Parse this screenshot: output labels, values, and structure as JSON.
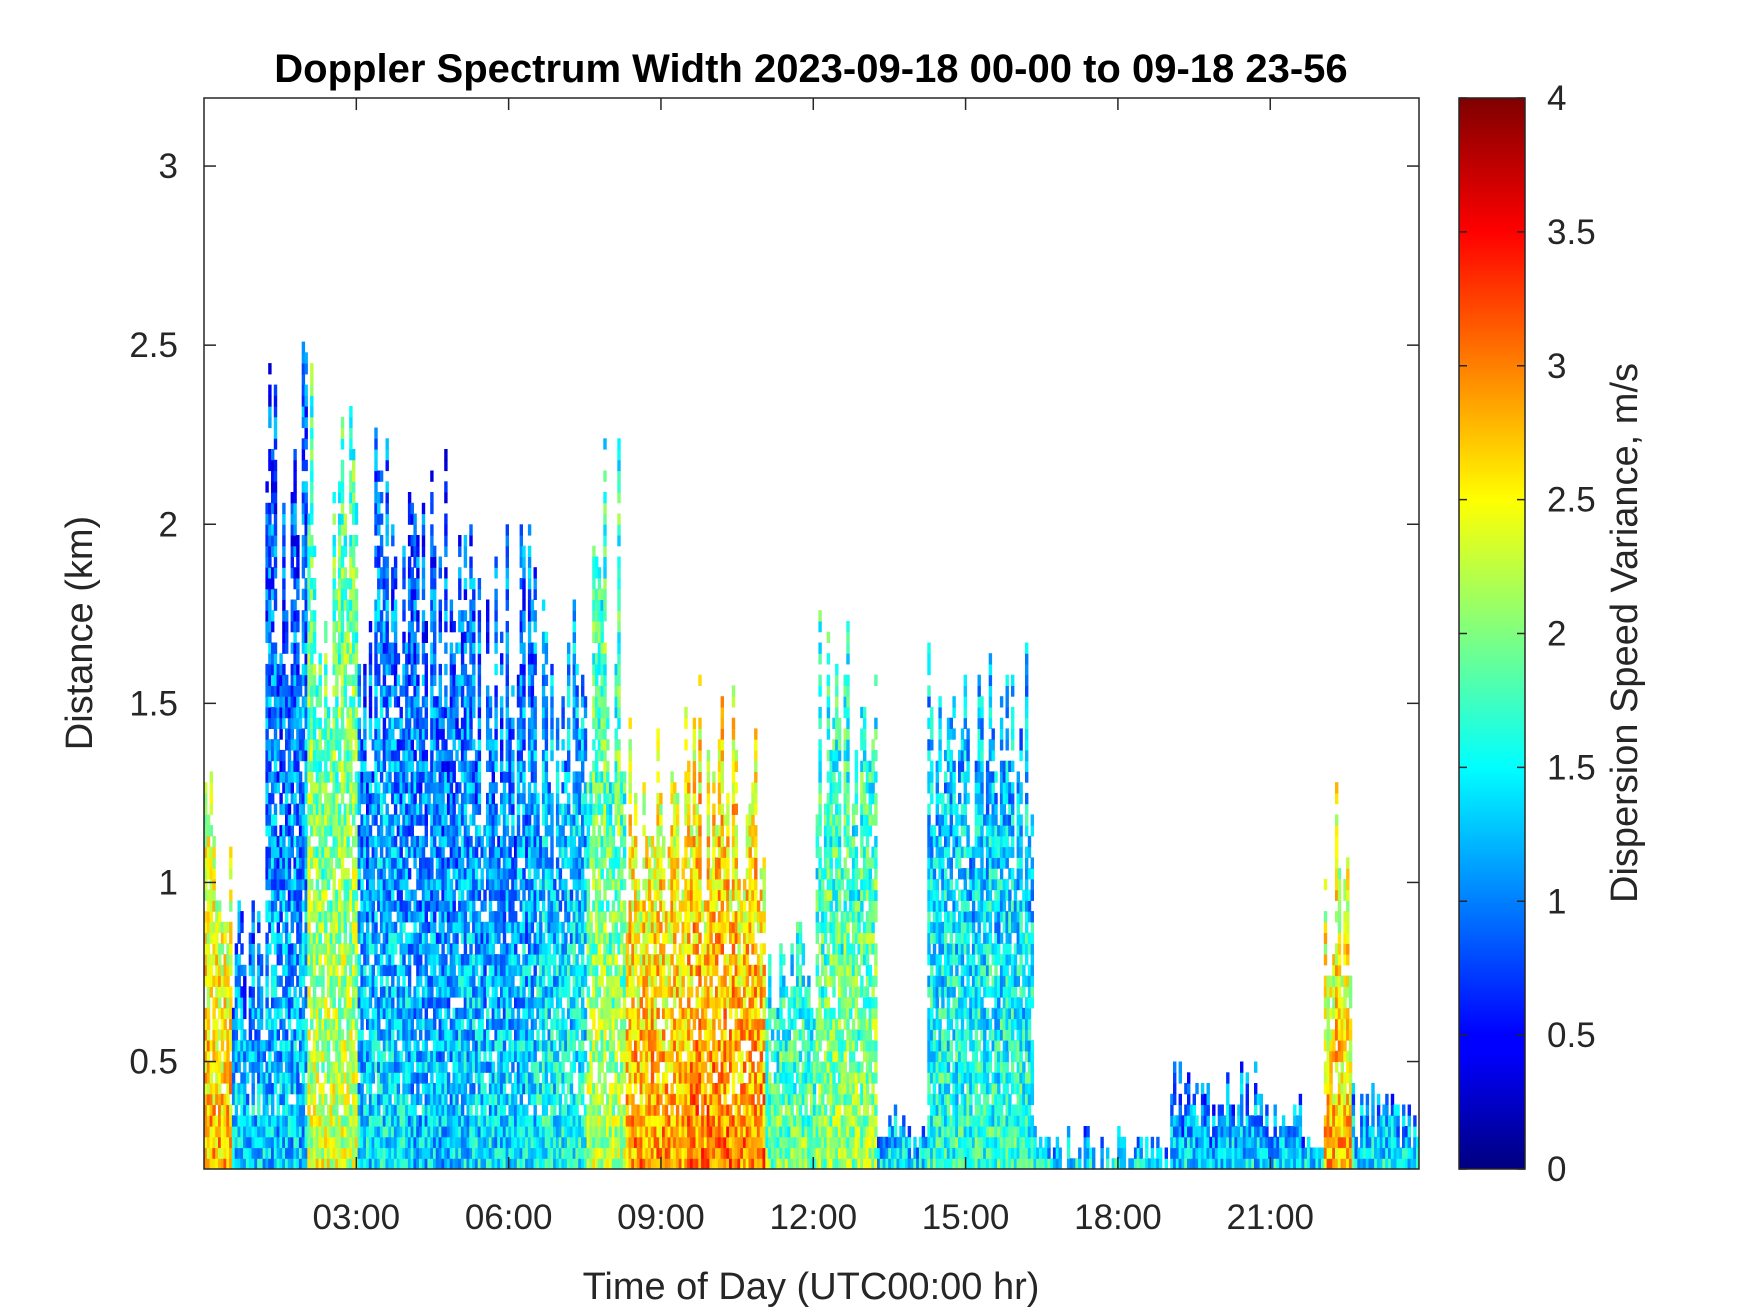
{
  "chart_data": {
    "type": "heatmap",
    "title": "Doppler Spectrum Width 2023-09-18 00-00 to 09-18 23-56",
    "xlabel": "Time of Day (UTC00:00 hr)",
    "ylabel": "Distance (km)",
    "colorbar_label": "Dispersion Speed Variance, m/s",
    "colormap": "jet",
    "x_range_hours": [
      0,
      23.93
    ],
    "y_range_km": [
      0.2,
      3.19
    ],
    "c_range": [
      0,
      4
    ],
    "x_ticks": [
      {
        "hour": 3,
        "label": "03:00"
      },
      {
        "hour": 6,
        "label": "06:00"
      },
      {
        "hour": 9,
        "label": "09:00"
      },
      {
        "hour": 12,
        "label": "12:00"
      },
      {
        "hour": 15,
        "label": "15:00"
      },
      {
        "hour": 18,
        "label": "18:00"
      },
      {
        "hour": 21,
        "label": "21:00"
      }
    ],
    "y_ticks": [
      {
        "km": 0.5,
        "label": "0.5"
      },
      {
        "km": 1,
        "label": "1"
      },
      {
        "km": 1.5,
        "label": "1.5"
      },
      {
        "km": 2,
        "label": "2"
      },
      {
        "km": 2.5,
        "label": "2.5"
      },
      {
        "km": 3,
        "label": "3"
      }
    ],
    "c_ticks": [
      {
        "value": 0,
        "label": "0"
      },
      {
        "value": 0.5,
        "label": "0.5"
      },
      {
        "value": 1,
        "label": "1"
      },
      {
        "value": 1.5,
        "label": "1.5"
      },
      {
        "value": 2,
        "label": "2"
      },
      {
        "value": 2.5,
        "label": "2.5"
      },
      {
        "value": 3,
        "label": "3"
      },
      {
        "value": 3.5,
        "label": "3.5"
      },
      {
        "value": 4,
        "label": "4"
      }
    ],
    "grid": false,
    "echo_regions": [
      {
        "t0": 0.0,
        "t1": 0.5,
        "top_km": 1.5,
        "width_ms": 2.8
      },
      {
        "t0": 0.5,
        "t1": 1.2,
        "top_km": 0.95,
        "width_ms": 1.4
      },
      {
        "t0": 1.2,
        "t1": 2.0,
        "top_km": 2.6,
        "width_ms": 1.3
      },
      {
        "t0": 2.0,
        "t1": 3.0,
        "top_km": 2.45,
        "width_ms": 2.3
      },
      {
        "t0": 3.0,
        "t1": 4.0,
        "top_km": 2.3,
        "width_ms": 1.4
      },
      {
        "t0": 4.0,
        "t1": 5.0,
        "top_km": 2.2,
        "width_ms": 1.3
      },
      {
        "t0": 5.0,
        "t1": 6.5,
        "top_km": 2.0,
        "width_ms": 1.4
      },
      {
        "t0": 6.5,
        "t1": 7.5,
        "top_km": 1.8,
        "width_ms": 1.6
      },
      {
        "t0": 7.5,
        "t1": 8.3,
        "top_km": 2.3,
        "width_ms": 2.2
      },
      {
        "t0": 8.3,
        "t1": 9.5,
        "top_km": 1.6,
        "width_ms": 2.9
      },
      {
        "t0": 9.5,
        "t1": 11.0,
        "top_km": 1.65,
        "width_ms": 3.0
      },
      {
        "t0": 11.0,
        "t1": 12.0,
        "top_km": 1.0,
        "width_ms": 2.0
      },
      {
        "t0": 12.0,
        "t1": 13.2,
        "top_km": 1.8,
        "width_ms": 2.1
      },
      {
        "t0": 13.2,
        "t1": 14.2,
        "top_km": 0.4,
        "width_ms": 1.5
      },
      {
        "t0": 14.2,
        "t1": 16.3,
        "top_km": 1.7,
        "width_ms": 1.7
      },
      {
        "t0": 16.3,
        "t1": 19.0,
        "top_km": 0.3,
        "width_ms": 1.5
      },
      {
        "t0": 19.0,
        "t1": 21.0,
        "top_km": 0.5,
        "width_ms": 1.4
      },
      {
        "t0": 21.0,
        "t1": 22.0,
        "top_km": 0.4,
        "width_ms": 1.4
      },
      {
        "t0": 22.0,
        "t1": 22.6,
        "top_km": 1.3,
        "width_ms": 2.8
      },
      {
        "t0": 22.6,
        "t1": 23.93,
        "top_km": 0.45,
        "width_ms": 1.5
      }
    ]
  }
}
